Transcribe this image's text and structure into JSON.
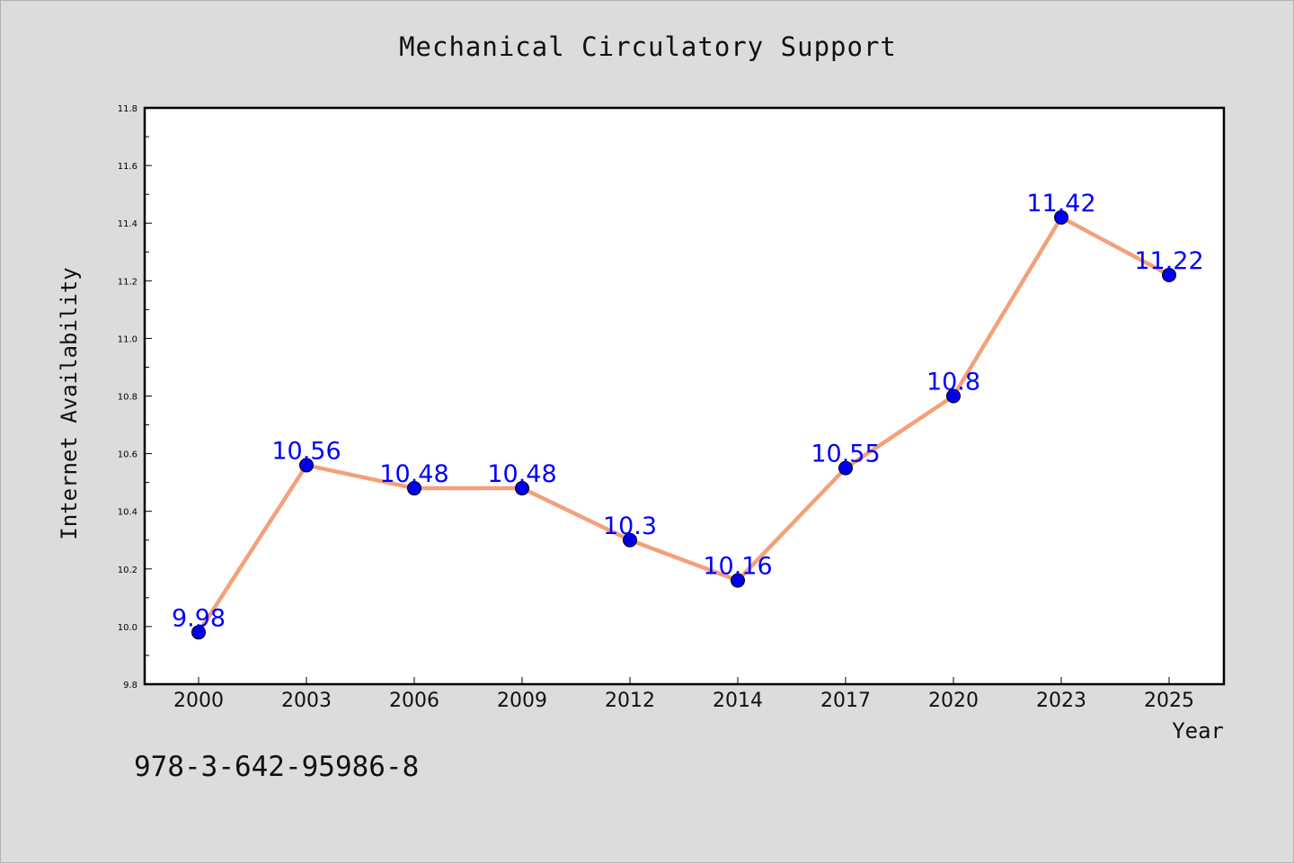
{
  "chart_data": {
    "type": "line",
    "title": "Mechanical Circulatory Support",
    "xlabel": "Year",
    "ylabel": "Internet Availability",
    "categories": [
      "2000",
      "2003",
      "2006",
      "2009",
      "2012",
      "2014",
      "2017",
      "2020",
      "2023",
      "2025"
    ],
    "series": [
      {
        "values": [
          9.98,
          10.56,
          10.48,
          10.48,
          10.3,
          10.16,
          10.55,
          10.8,
          11.42,
          11.22
        ]
      }
    ],
    "data_labels": [
      "9.98",
      "10.56",
      "10.48",
      "10.48",
      "10.3",
      "10.16",
      "10.55",
      "10.8",
      "11.42",
      "11.22"
    ],
    "ylim": [
      9.8,
      11.8
    ],
    "y_ticks": [
      "9.8",
      "10.0",
      "10.2",
      "10.4",
      "10.6",
      "10.8",
      "11.0",
      "11.2",
      "11.4",
      "11.6",
      "11.8"
    ],
    "grid": false,
    "legend": "none",
    "colors": {
      "line": "#f4a07a",
      "marker": "#0000ee",
      "data_label": "#0000ff",
      "plot_bg": "#ffffff",
      "page_bg": "#dcdcdc"
    }
  },
  "footer_code": "978-3-642-95986-8"
}
